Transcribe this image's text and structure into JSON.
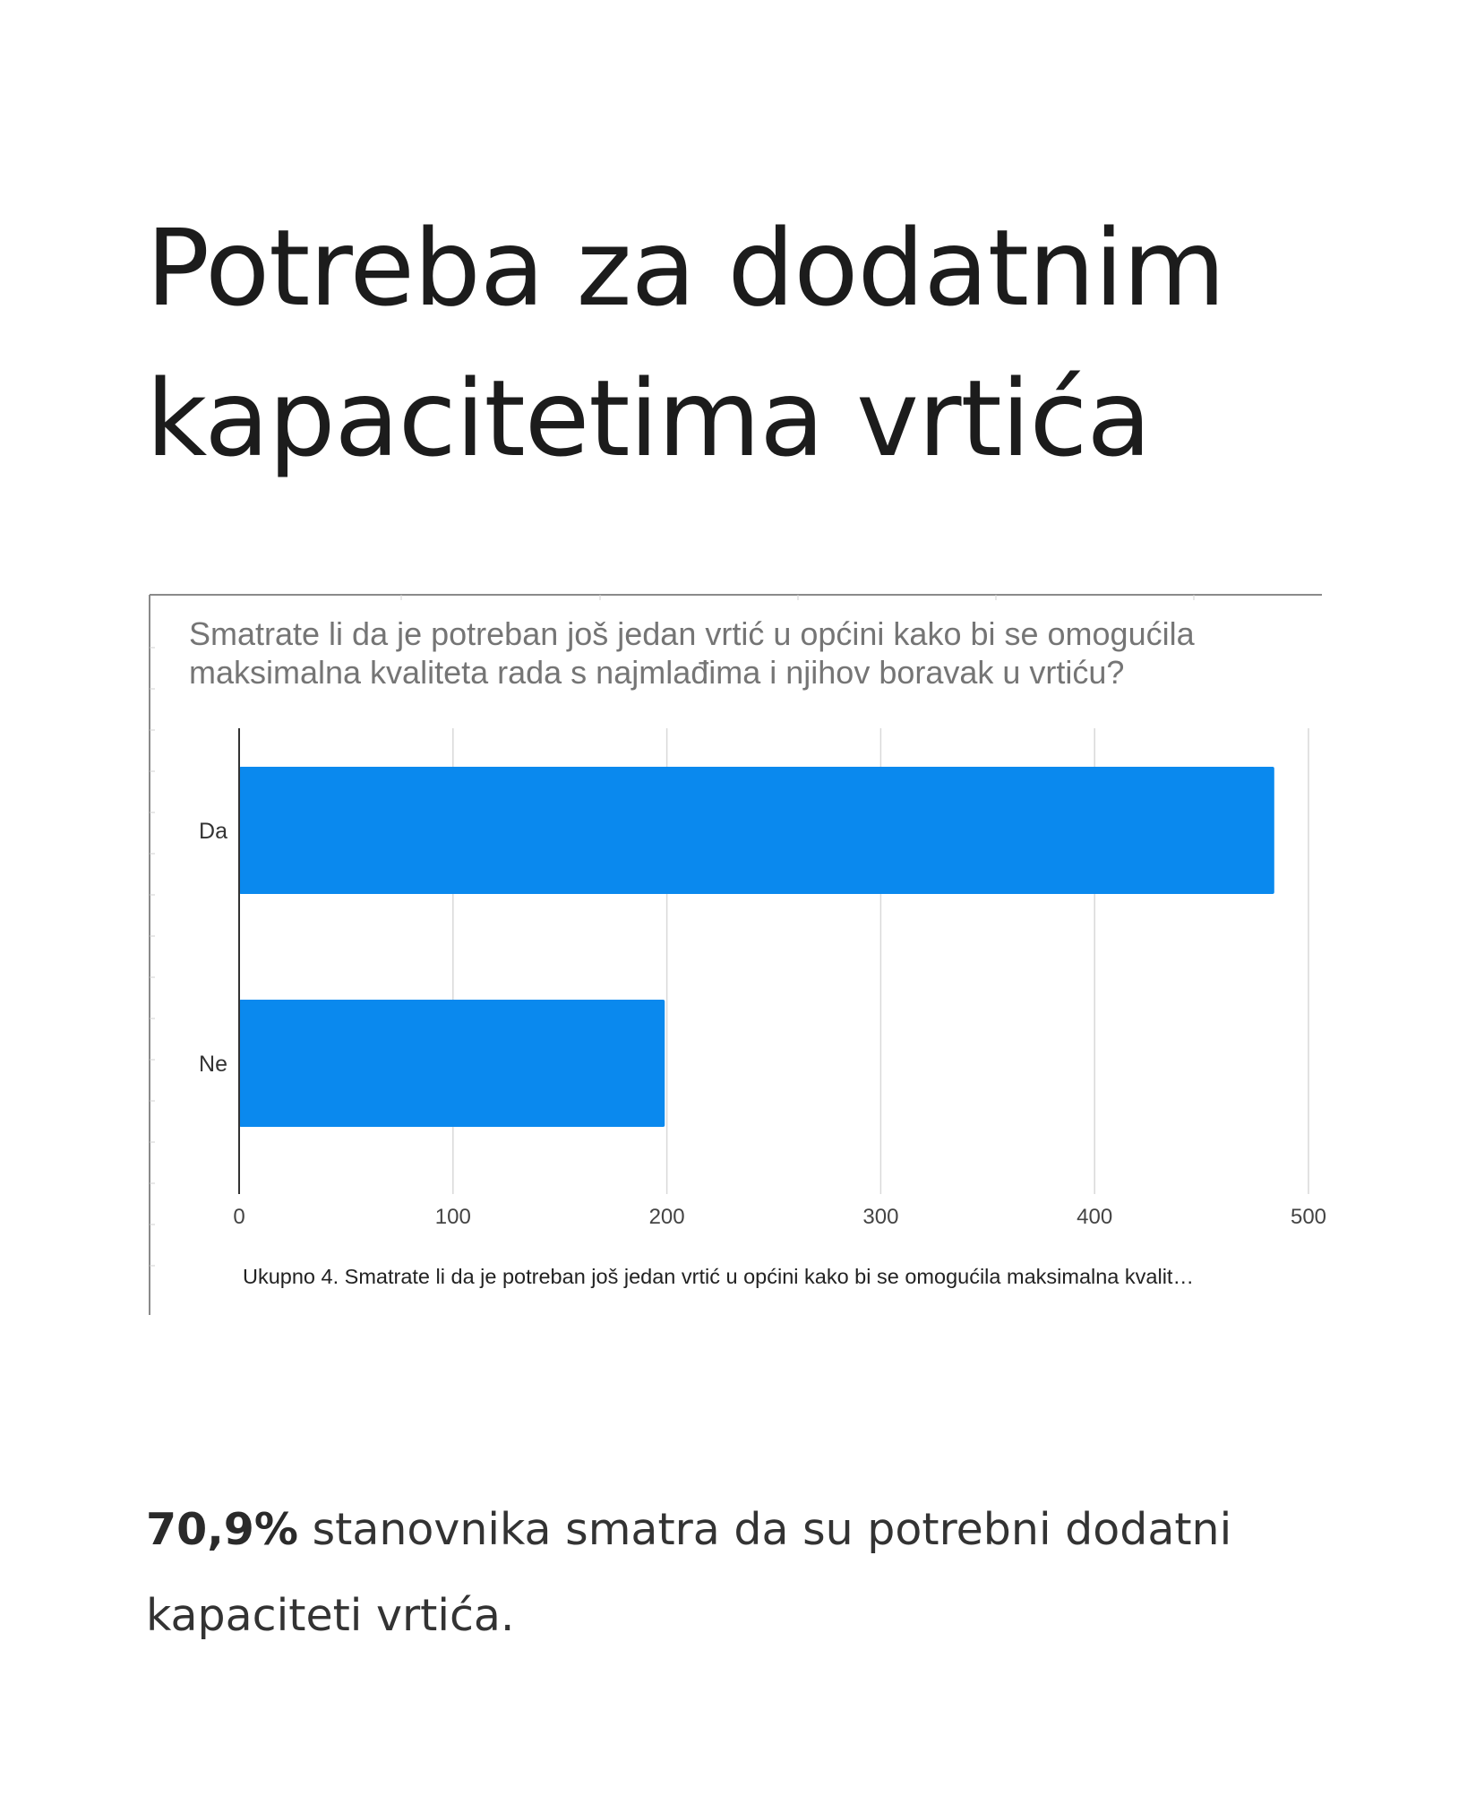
{
  "page": {
    "title": "Potreba za dodatnim kapacitetima vrtića"
  },
  "chart_data": {
    "type": "bar",
    "orientation": "horizontal",
    "title_lines": [
      "Smatrate li da je potreban još jedan vrtić u općini kako bi se omogućila",
      "maksimalna kvaliteta rada s najmlađima i njihov boravak u vrtiću?"
    ],
    "categories": [
      "Da",
      "Ne"
    ],
    "values": [
      484,
      199
    ],
    "xlim": [
      0,
      500
    ],
    "ticks": [
      "0",
      "100",
      "200",
      "300",
      "400",
      "500"
    ],
    "footer": "Ukupno 4. Smatrate li da je potreban još jedan vrtić u općini kako bi se omogućila maksimalna kvalit…",
    "bar_color": "#0a89ee",
    "grid": true
  },
  "summary": {
    "highlight": "70,9%",
    "text": " stanovnika smatra da su potrebni dodatni kapaciteti vrtića."
  }
}
